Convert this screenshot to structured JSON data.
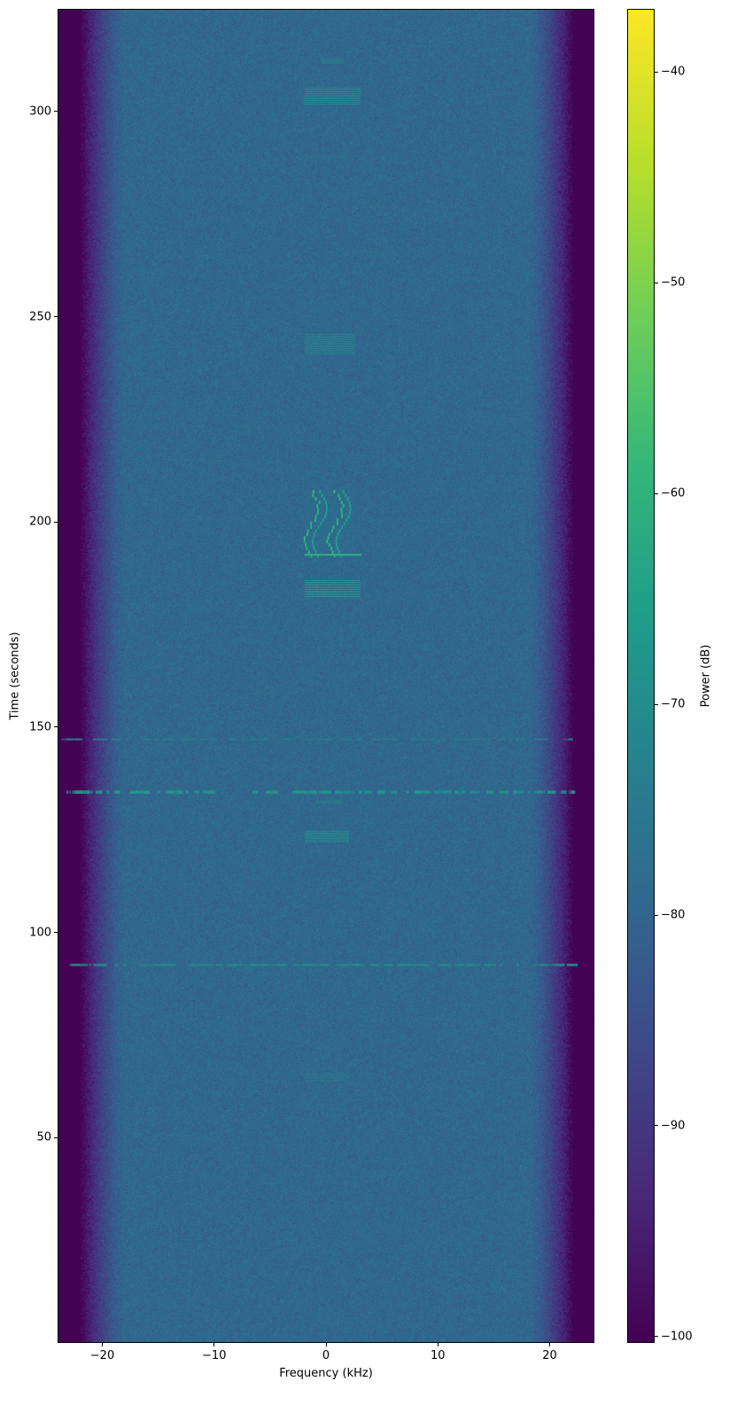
{
  "chart_data": {
    "type": "heatmap",
    "subtype": "spectrogram",
    "title": "",
    "xlabel": "Frequency (kHz)",
    "ylabel": "Time (seconds)",
    "xlim": [
      -24,
      24
    ],
    "ylim": [
      0,
      325
    ],
    "xticks": [
      -20,
      -10,
      0,
      10,
      20
    ],
    "xtick_labels": [
      "−20",
      "−10",
      "0",
      "10",
      "20"
    ],
    "yticks": [
      50,
      100,
      150,
      200,
      250,
      300
    ],
    "ytick_labels": [
      "50",
      "100",
      "150",
      "200",
      "250",
      "300"
    ],
    "colorbar": {
      "label": "Power (dB)",
      "colormap": "viridis",
      "range": [
        -100.3,
        -37
      ],
      "ticks": [
        -100,
        -90,
        -80,
        -70,
        -60,
        -50,
        -40
      ],
      "tick_labels": [
        "−100",
        "−90",
        "−80",
        "−70",
        "−60",
        "−50",
        "−40"
      ]
    },
    "background": {
      "noise_floor_db": -79,
      "passband_khz": [
        -18,
        18
      ],
      "stopband_edge_khz": 22,
      "stopband_db": -100
    },
    "features": [
      {
        "kind": "tone-lines",
        "t": [
          312,
          313
        ],
        "f": [
          -0.5,
          1.5
        ],
        "db": -70
      },
      {
        "kind": "tone-lines",
        "t": [
          302,
          306
        ],
        "f": [
          -2,
          3
        ],
        "db": -68
      },
      {
        "kind": "tone-lines",
        "t": [
          289,
          289.5
        ],
        "f": [
          -2,
          2
        ],
        "db": -76
      },
      {
        "kind": "tone-lines",
        "t": [
          241,
          246
        ],
        "f": [
          -2,
          2.5
        ],
        "db": -70
      },
      {
        "kind": "chirp-pattern",
        "t": [
          192,
          208
        ],
        "f": [
          -2,
          2.5
        ],
        "db": -60
      },
      {
        "kind": "tone-lines",
        "t": [
          182,
          186
        ],
        "f": [
          -2,
          3
        ],
        "db": -64
      },
      {
        "kind": "broadband",
        "t": [
          147,
          147.5
        ],
        "f": [
          -24,
          22
        ],
        "db": -74
      },
      {
        "kind": "broadband",
        "t": [
          134,
          134.8
        ],
        "f": [
          -24,
          22
        ],
        "db": -68
      },
      {
        "kind": "tone-lines",
        "t": [
          131.5,
          132.3
        ],
        "f": [
          -1,
          1.5
        ],
        "db": -70
      },
      {
        "kind": "tone-lines",
        "t": [
          122,
          125
        ],
        "f": [
          -2,
          2
        ],
        "db": -66
      },
      {
        "kind": "broadband",
        "t": [
          92,
          92.6
        ],
        "f": [
          -23,
          22
        ],
        "db": -72
      },
      {
        "kind": "tone-lines",
        "t": [
          72,
          72.5
        ],
        "f": [
          -1,
          1
        ],
        "db": -76
      },
      {
        "kind": "tone-lines",
        "t": [
          64,
          66
        ],
        "f": [
          -2,
          2
        ],
        "db": -74
      }
    ]
  }
}
